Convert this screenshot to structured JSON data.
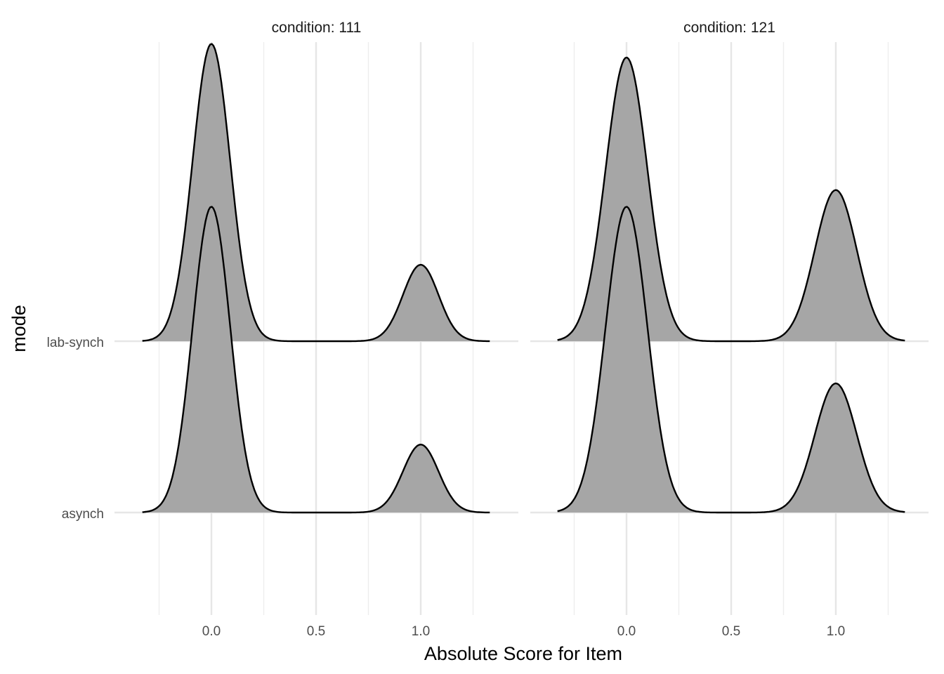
{
  "chart_data": {
    "type": "ridgeline",
    "xlabel": "Absolute Score for Item",
    "ylabel": "mode",
    "x_ticks": [
      0.0,
      0.5,
      1.0
    ],
    "x_tick_labels": [
      "0.0",
      "0.5",
      "1.0"
    ],
    "x_minor_ticks": [
      -0.25,
      0.25,
      0.75,
      1.25
    ],
    "x_range": [
      -0.33,
      1.33
    ],
    "y_categories": [
      "asynch",
      "lab-synch"
    ],
    "grid": true,
    "panels": [
      {
        "strip": "condition: 111",
        "ridges": [
          {
            "category": "lab-synch",
            "peaks": [
              {
                "x": 0.0,
                "height": 1.75,
                "sd": 0.09
              },
              {
                "x": 1.0,
                "height": 0.45,
                "sd": 0.085
              }
            ]
          },
          {
            "category": "asynch",
            "peaks": [
              {
                "x": 0.0,
                "height": 1.8,
                "sd": 0.09
              },
              {
                "x": 1.0,
                "height": 0.4,
                "sd": 0.085
              }
            ]
          }
        ]
      },
      {
        "strip": "condition: 121",
        "ridges": [
          {
            "category": "lab-synch",
            "peaks": [
              {
                "x": 0.0,
                "height": 1.67,
                "sd": 0.1
              },
              {
                "x": 1.0,
                "height": 0.89,
                "sd": 0.1
              }
            ]
          },
          {
            "category": "asynch",
            "peaks": [
              {
                "x": 0.0,
                "height": 1.8,
                "sd": 0.1
              },
              {
                "x": 1.0,
                "height": 0.76,
                "sd": 0.1
              }
            ]
          }
        ]
      }
    ]
  }
}
